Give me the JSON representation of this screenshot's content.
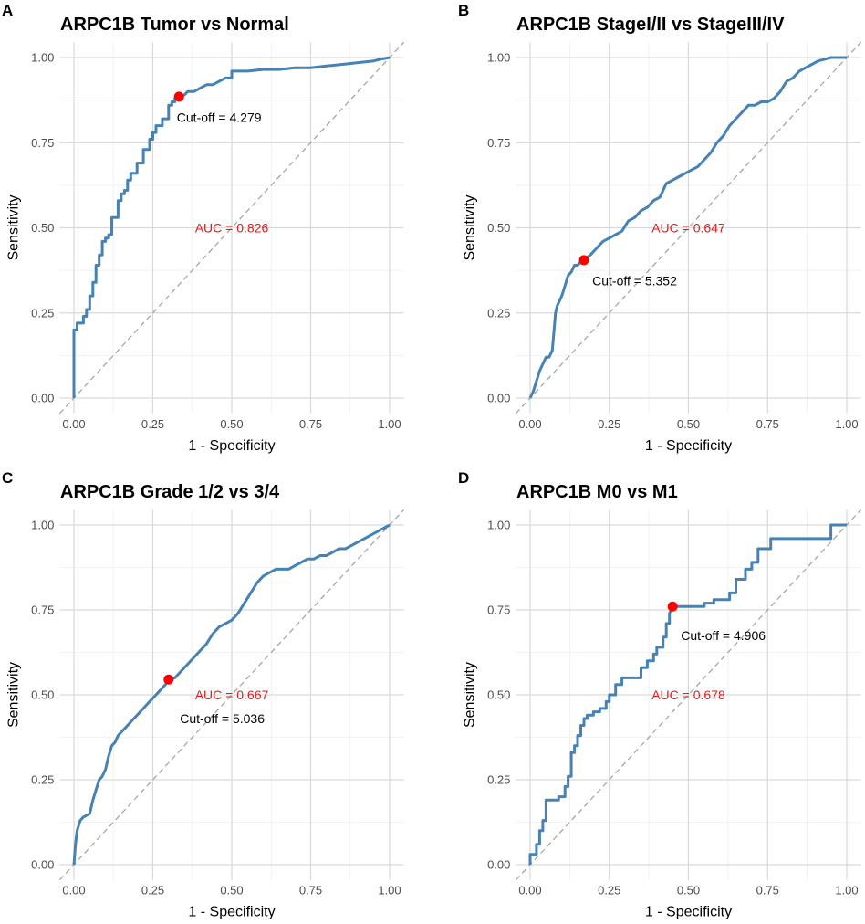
{
  "colors": {
    "curve": "#4682B4",
    "cutoff_point": "#FF0000",
    "auc_text": "#E41A1C",
    "annotation_text": "#000000"
  },
  "chart_data": [
    {
      "type": "line",
      "panel_label": "A",
      "title": "ARPC1B Tumor vs Normal",
      "xlabel": "1 - Specificity",
      "ylabel": "Sensitivity",
      "xlim": [
        0,
        1
      ],
      "ylim": [
        0,
        1
      ],
      "x_ticks": [
        "0.00",
        "0.25",
        "0.50",
        "0.75",
        "1.00"
      ],
      "y_ticks": [
        "0.00",
        "0.25",
        "0.50",
        "0.75",
        "1.00"
      ],
      "grid": true,
      "reference_line": "diagonal dashed",
      "auc_label": "AUC = 0.826",
      "auc_label_pos": [
        0.5,
        0.5
      ],
      "cutoff_label": "Cut-off = 4.279",
      "cutoff_label_pos": [
        0.46,
        0.825
      ],
      "cutoff_point": [
        0.333,
        0.885
      ],
      "series": [
        {
          "name": "ROC",
          "x": [
            0.0,
            0.0,
            0.01,
            0.01,
            0.03,
            0.03,
            0.04,
            0.04,
            0.05,
            0.05,
            0.06,
            0.06,
            0.07,
            0.07,
            0.08,
            0.08,
            0.09,
            0.09,
            0.1,
            0.1,
            0.11,
            0.11,
            0.12,
            0.12,
            0.14,
            0.14,
            0.15,
            0.15,
            0.16,
            0.16,
            0.17,
            0.17,
            0.18,
            0.18,
            0.2,
            0.2,
            0.22,
            0.22,
            0.24,
            0.24,
            0.25,
            0.25,
            0.26,
            0.26,
            0.28,
            0.28,
            0.3,
            0.3,
            0.31,
            0.31,
            0.32,
            0.32,
            0.333,
            0.35,
            0.36,
            0.38,
            0.4,
            0.42,
            0.44,
            0.46,
            0.48,
            0.5,
            0.5,
            0.55,
            0.6,
            0.65,
            0.7,
            0.75,
            0.8,
            0.85,
            0.9,
            0.95,
            0.97,
            1.0
          ],
          "y": [
            0.0,
            0.2,
            0.2,
            0.22,
            0.22,
            0.24,
            0.24,
            0.26,
            0.26,
            0.3,
            0.3,
            0.34,
            0.34,
            0.39,
            0.39,
            0.42,
            0.42,
            0.46,
            0.46,
            0.47,
            0.47,
            0.48,
            0.48,
            0.53,
            0.53,
            0.58,
            0.58,
            0.6,
            0.6,
            0.61,
            0.61,
            0.64,
            0.64,
            0.66,
            0.66,
            0.69,
            0.69,
            0.73,
            0.73,
            0.76,
            0.76,
            0.78,
            0.78,
            0.8,
            0.8,
            0.82,
            0.82,
            0.86,
            0.86,
            0.87,
            0.87,
            0.88,
            0.885,
            0.89,
            0.9,
            0.9,
            0.91,
            0.92,
            0.92,
            0.93,
            0.94,
            0.94,
            0.96,
            0.96,
            0.965,
            0.965,
            0.97,
            0.97,
            0.975,
            0.98,
            0.985,
            0.99,
            0.995,
            1.0
          ]
        }
      ]
    },
    {
      "type": "line",
      "panel_label": "B",
      "title": "ARPC1B StageI/II vs StageIII/IV",
      "xlabel": "1 - Specificity",
      "ylabel": "Sensitivity",
      "xlim": [
        0,
        1
      ],
      "ylim": [
        0,
        1
      ],
      "x_ticks": [
        "0.00",
        "0.25",
        "0.50",
        "0.75",
        "1.00"
      ],
      "y_ticks": [
        "0.00",
        "0.25",
        "0.50",
        "0.75",
        "1.00"
      ],
      "grid": true,
      "reference_line": "diagonal dashed",
      "auc_label": "AUC = 0.647",
      "auc_label_pos": [
        0.5,
        0.5
      ],
      "cutoff_label": "Cut-off = 5.352",
      "cutoff_label_pos": [
        0.33,
        0.345
      ],
      "cutoff_point": [
        0.17,
        0.405
      ],
      "series": [
        {
          "name": "ROC",
          "x": [
            0.0,
            0.01,
            0.02,
            0.03,
            0.04,
            0.05,
            0.06,
            0.07,
            0.08,
            0.085,
            0.09,
            0.1,
            0.11,
            0.12,
            0.13,
            0.14,
            0.15,
            0.16,
            0.17,
            0.19,
            0.21,
            0.23,
            0.25,
            0.27,
            0.29,
            0.31,
            0.33,
            0.35,
            0.37,
            0.39,
            0.41,
            0.43,
            0.45,
            0.47,
            0.49,
            0.51,
            0.53,
            0.55,
            0.57,
            0.59,
            0.61,
            0.63,
            0.65,
            0.67,
            0.69,
            0.71,
            0.73,
            0.75,
            0.77,
            0.79,
            0.81,
            0.83,
            0.85,
            0.87,
            0.89,
            0.91,
            0.93,
            0.95,
            0.97,
            1.0
          ],
          "y": [
            0.0,
            0.02,
            0.05,
            0.08,
            0.1,
            0.12,
            0.12,
            0.14,
            0.25,
            0.27,
            0.28,
            0.3,
            0.33,
            0.36,
            0.37,
            0.39,
            0.39,
            0.4,
            0.405,
            0.42,
            0.44,
            0.46,
            0.47,
            0.48,
            0.49,
            0.52,
            0.53,
            0.55,
            0.56,
            0.58,
            0.59,
            0.63,
            0.64,
            0.65,
            0.66,
            0.67,
            0.68,
            0.7,
            0.72,
            0.75,
            0.77,
            0.8,
            0.82,
            0.84,
            0.86,
            0.86,
            0.87,
            0.87,
            0.88,
            0.9,
            0.93,
            0.94,
            0.96,
            0.97,
            0.98,
            0.99,
            0.995,
            1.0,
            1.0,
            1.0
          ]
        }
      ]
    },
    {
      "type": "line",
      "panel_label": "C",
      "title": "ARPC1B Grade 1/2 vs 3/4",
      "xlabel": "1 - Specificity",
      "ylabel": "Sensitivity",
      "xlim": [
        0,
        1
      ],
      "ylim": [
        0,
        1
      ],
      "x_ticks": [
        "0.00",
        "0.25",
        "0.50",
        "0.75",
        "1.00"
      ],
      "y_ticks": [
        "0.00",
        "0.25",
        "0.50",
        "0.75",
        "1.00"
      ],
      "grid": true,
      "reference_line": "diagonal dashed",
      "auc_label": "AUC = 0.667",
      "auc_label_pos": [
        0.5,
        0.5
      ],
      "cutoff_label": "Cut-off = 5.036",
      "cutoff_label_pos": [
        0.47,
        0.43
      ],
      "cutoff_point": [
        0.3,
        0.545
      ],
      "series": [
        {
          "name": "ROC",
          "x": [
            0.0,
            0.005,
            0.01,
            0.02,
            0.03,
            0.05,
            0.06,
            0.07,
            0.08,
            0.09,
            0.1,
            0.11,
            0.12,
            0.13,
            0.14,
            0.15,
            0.16,
            0.17,
            0.18,
            0.19,
            0.2,
            0.22,
            0.24,
            0.25,
            0.26,
            0.27,
            0.28,
            0.29,
            0.3,
            0.32,
            0.34,
            0.36,
            0.38,
            0.4,
            0.42,
            0.44,
            0.46,
            0.48,
            0.5,
            0.52,
            0.54,
            0.56,
            0.58,
            0.6,
            0.62,
            0.64,
            0.66,
            0.68,
            0.7,
            0.72,
            0.74,
            0.76,
            0.78,
            0.8,
            0.82,
            0.84,
            0.86,
            0.88,
            0.9,
            0.92,
            0.94,
            0.96,
            0.98,
            1.0
          ],
          "y": [
            0.0,
            0.06,
            0.1,
            0.13,
            0.14,
            0.15,
            0.19,
            0.22,
            0.25,
            0.26,
            0.28,
            0.32,
            0.35,
            0.36,
            0.38,
            0.39,
            0.4,
            0.41,
            0.42,
            0.43,
            0.44,
            0.46,
            0.48,
            0.49,
            0.5,
            0.51,
            0.52,
            0.53,
            0.545,
            0.55,
            0.57,
            0.59,
            0.61,
            0.63,
            0.65,
            0.68,
            0.7,
            0.71,
            0.72,
            0.74,
            0.77,
            0.8,
            0.83,
            0.85,
            0.86,
            0.87,
            0.87,
            0.87,
            0.88,
            0.89,
            0.9,
            0.9,
            0.91,
            0.91,
            0.92,
            0.93,
            0.93,
            0.94,
            0.95,
            0.96,
            0.97,
            0.98,
            0.99,
            1.0
          ]
        }
      ]
    },
    {
      "type": "line",
      "panel_label": "D",
      "title": "ARPC1B M0 vs M1",
      "xlabel": "1 - Specificity",
      "ylabel": "Sensitivity",
      "xlim": [
        0,
        1
      ],
      "ylim": [
        0,
        1
      ],
      "x_ticks": [
        "0.00",
        "0.25",
        "0.50",
        "0.75",
        "1.00"
      ],
      "y_ticks": [
        "0.00",
        "0.25",
        "0.50",
        "0.75",
        "1.00"
      ],
      "grid": true,
      "reference_line": "diagonal dashed",
      "auc_label": "AUC = 0.678",
      "auc_label_pos": [
        0.5,
        0.5
      ],
      "cutoff_label": "Cut-off = 4.906",
      "cutoff_label_pos": [
        0.61,
        0.675
      ],
      "cutoff_point": [
        0.45,
        0.76
      ],
      "series": [
        {
          "name": "ROC",
          "x": [
            0.0,
            0.0,
            0.02,
            0.02,
            0.03,
            0.03,
            0.04,
            0.04,
            0.05,
            0.05,
            0.07,
            0.07,
            0.09,
            0.09,
            0.11,
            0.11,
            0.12,
            0.12,
            0.13,
            0.13,
            0.14,
            0.14,
            0.15,
            0.15,
            0.16,
            0.16,
            0.17,
            0.17,
            0.18,
            0.18,
            0.2,
            0.2,
            0.22,
            0.22,
            0.24,
            0.24,
            0.25,
            0.25,
            0.27,
            0.27,
            0.29,
            0.29,
            0.3,
            0.3,
            0.32,
            0.32,
            0.35,
            0.35,
            0.37,
            0.37,
            0.39,
            0.39,
            0.4,
            0.4,
            0.42,
            0.42,
            0.43,
            0.43,
            0.44,
            0.44,
            0.45,
            0.5,
            0.5,
            0.55,
            0.55,
            0.58,
            0.58,
            0.63,
            0.63,
            0.65,
            0.65,
            0.68,
            0.68,
            0.7,
            0.7,
            0.72,
            0.72,
            0.76,
            0.76,
            0.95,
            0.95,
            1.0
          ],
          "y": [
            0.0,
            0.03,
            0.03,
            0.06,
            0.06,
            0.1,
            0.1,
            0.13,
            0.13,
            0.19,
            0.19,
            0.19,
            0.19,
            0.2,
            0.2,
            0.23,
            0.23,
            0.26,
            0.26,
            0.33,
            0.33,
            0.35,
            0.35,
            0.38,
            0.38,
            0.41,
            0.41,
            0.43,
            0.43,
            0.44,
            0.44,
            0.45,
            0.45,
            0.46,
            0.46,
            0.48,
            0.48,
            0.5,
            0.5,
            0.53,
            0.53,
            0.55,
            0.55,
            0.55,
            0.55,
            0.55,
            0.55,
            0.58,
            0.58,
            0.6,
            0.6,
            0.62,
            0.62,
            0.64,
            0.64,
            0.67,
            0.67,
            0.71,
            0.71,
            0.74,
            0.76,
            0.76,
            0.76,
            0.76,
            0.77,
            0.77,
            0.78,
            0.78,
            0.8,
            0.8,
            0.84,
            0.84,
            0.87,
            0.87,
            0.89,
            0.89,
            0.93,
            0.93,
            0.96,
            0.96,
            1.0,
            1.0
          ]
        }
      ]
    }
  ]
}
